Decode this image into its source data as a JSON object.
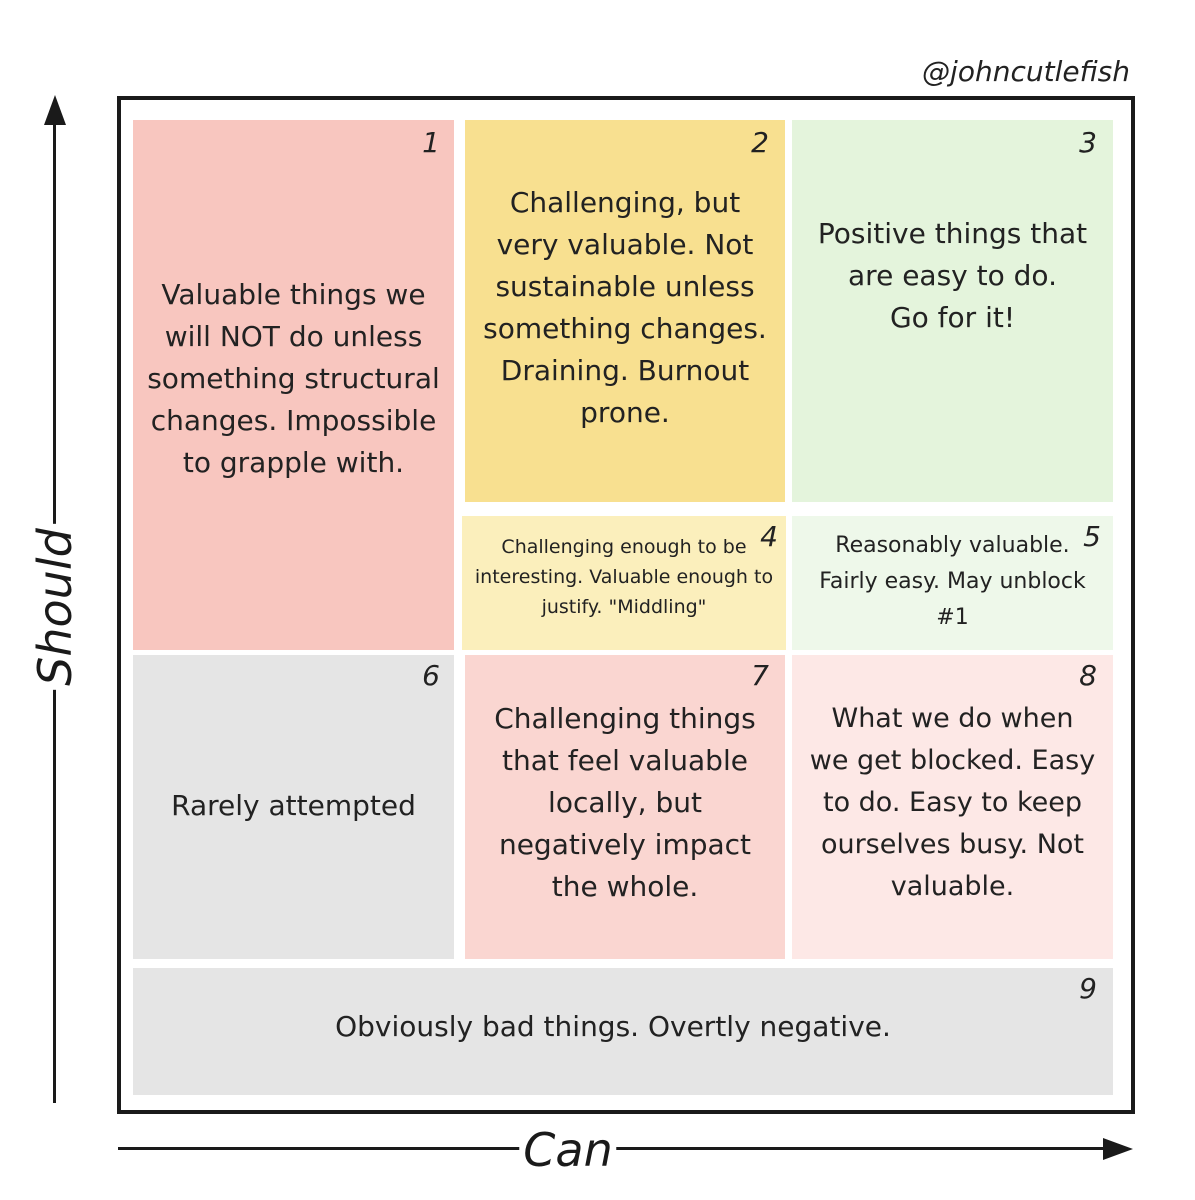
{
  "credit": "@johncutlefish",
  "axes": {
    "y_label": "Should",
    "x_label": "Can"
  },
  "cells": [
    {
      "number": "1",
      "lines": [
        "Valuable things we",
        "will NOT do unless",
        "something structural",
        "changes. Impossible",
        "to grapple with."
      ],
      "color": "#f8c6bf"
    },
    {
      "number": "2",
      "lines": [
        "Challenging, but",
        "very valuable. Not",
        "sustainable unless",
        "something changes.",
        "Draining. Burnout",
        "prone."
      ],
      "color": "#f8e090"
    },
    {
      "number": "3",
      "lines": [
        "Positive things that",
        "are easy to do.",
        "Go for it!"
      ],
      "color": "#e4f4dc"
    },
    {
      "number": "4",
      "lines": [
        "Challenging enough to be",
        "interesting. Valuable enough to",
        "justify. \"Middling\""
      ],
      "color": "#fbefbc"
    },
    {
      "number": "5",
      "lines": [
        "Reasonably valuable.",
        "Fairly easy. May unblock",
        "#1"
      ],
      "color": "#eef8ea"
    },
    {
      "number": "6",
      "lines": [
        "Rarely attempted"
      ],
      "color": "#e5e5e5"
    },
    {
      "number": "7",
      "lines": [
        "Challenging things",
        "that feel valuable",
        "locally, but",
        "negatively impact",
        "the whole."
      ],
      "color": "#fad6d1"
    },
    {
      "number": "8",
      "lines": [
        "What we do when",
        "we get blocked. Easy",
        "to do. Easy to keep",
        "ourselves busy. Not",
        "valuable."
      ],
      "color": "#fde8e6"
    },
    {
      "number": "9",
      "lines": [
        "Obviously bad things. Overtly negative."
      ],
      "color": "#e5e5e5"
    }
  ]
}
